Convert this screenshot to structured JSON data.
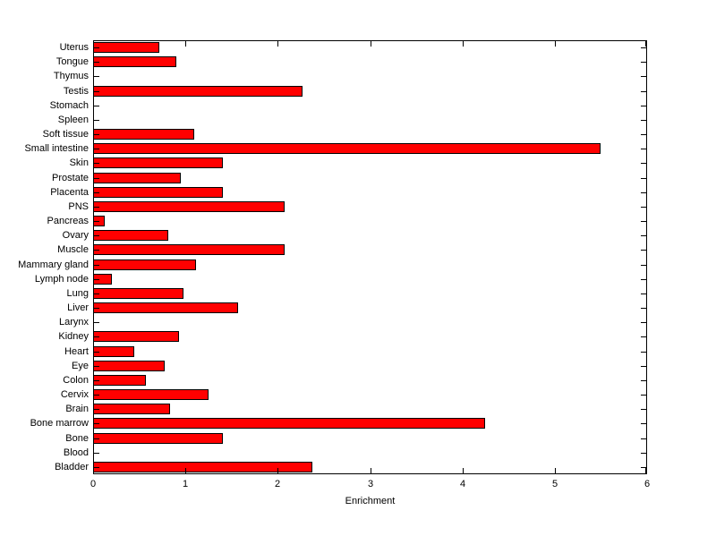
{
  "chart_data": {
    "type": "bar",
    "orientation": "horizontal",
    "title": "",
    "xlabel": "Enrichment",
    "ylabel": "",
    "xlim": [
      0,
      6
    ],
    "xticks": [
      0,
      1,
      2,
      3,
      4,
      5,
      6
    ],
    "grid": false,
    "legend": null,
    "bar_color": "#ff0000",
    "bar_edge_color": "#000000",
    "background": "#ffffff",
    "categories": [
      "Uterus",
      "Tongue",
      "Thymus",
      "Testis",
      "Stomach",
      "Spleen",
      "Soft tissue",
      "Small intestine",
      "Skin",
      "Prostate",
      "Placenta",
      "PNS",
      "Pancreas",
      "Ovary",
      "Muscle",
      "Mammary gland",
      "Lymph node",
      "Lung",
      "Liver",
      "Larynx",
      "Kidney",
      "Heart",
      "Eye",
      "Colon",
      "Cervix",
      "Brain",
      "Bone marrow",
      "Bone",
      "Blood",
      "Bladder"
    ],
    "values": [
      0.72,
      0.9,
      0,
      2.27,
      0,
      0,
      1.1,
      5.5,
      1.41,
      0.95,
      1.41,
      2.07,
      0.13,
      0.81,
      2.07,
      1.11,
      0.2,
      0.98,
      1.57,
      0,
      0.93,
      0.45,
      0.78,
      0.57,
      1.25,
      0.83,
      4.25,
      1.41,
      0,
      2.37
    ]
  }
}
